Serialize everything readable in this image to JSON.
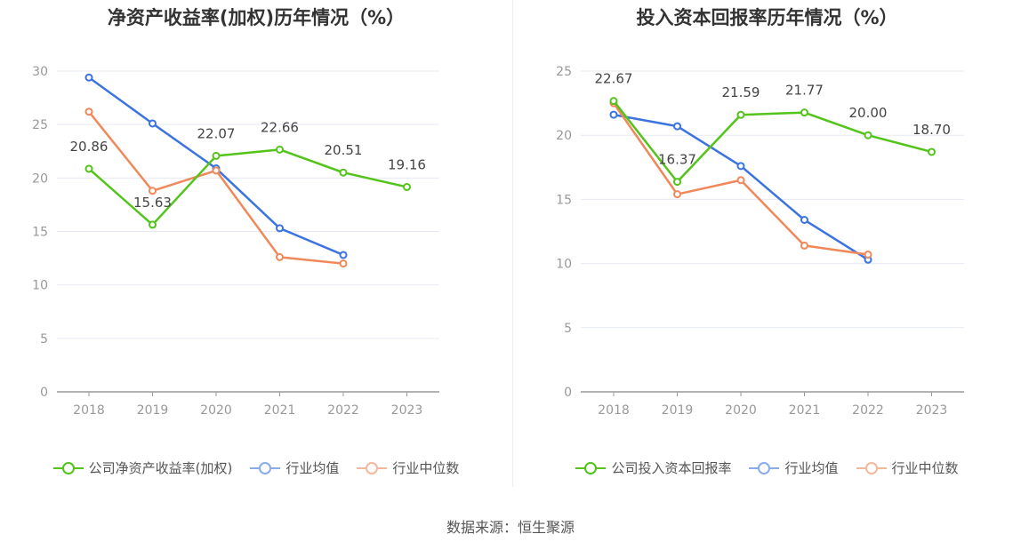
{
  "source": "数据来源：恒生聚源",
  "chart_data": [
    {
      "type": "line",
      "title": "净资产收益率(加权)历年情况（%）",
      "categories": [
        "2018",
        "2019",
        "2020",
        "2021",
        "2022",
        "2023"
      ],
      "ylim": [
        0,
        30
      ],
      "yticks": [
        "0",
        "5",
        "10",
        "15",
        "20",
        "25",
        "30"
      ],
      "grid": true,
      "legend_position": "bottom",
      "series": [
        {
          "name": "公司净资产收益率(加权)",
          "color": "#52c41a",
          "values": [
            20.86,
            15.63,
            22.07,
            22.66,
            20.51,
            19.16
          ],
          "labels": [
            "20.86",
            "15.63",
            "22.07",
            "22.66",
            "20.51",
            "19.16"
          ],
          "label_offsets": [
            -20,
            -20,
            -20,
            -20,
            -20,
            -20
          ]
        },
        {
          "name": "行业均值",
          "color": "#3b73e0",
          "values": [
            29.4,
            25.1,
            20.9,
            15.3,
            12.8,
            null
          ]
        },
        {
          "name": "行业中位数",
          "color": "#f0885a",
          "values": [
            26.2,
            18.8,
            20.7,
            12.6,
            12.0,
            null
          ]
        }
      ]
    },
    {
      "type": "line",
      "title": "投入资本回报率历年情况（%）",
      "categories": [
        "2018",
        "2019",
        "2020",
        "2021",
        "2022",
        "2023"
      ],
      "ylim": [
        0,
        25
      ],
      "yticks": [
        "0",
        "5",
        "10",
        "15",
        "20",
        "25"
      ],
      "grid": true,
      "legend_position": "bottom",
      "series": [
        {
          "name": "公司投入资本回报率",
          "color": "#52c41a",
          "values": [
            22.67,
            16.37,
            21.59,
            21.77,
            20.0,
            18.7
          ],
          "labels": [
            "22.67",
            "16.37",
            "21.59",
            "21.77",
            "20.00",
            "18.70"
          ],
          "label_offsets": [
            -20,
            -20,
            -20,
            -20,
            -20,
            -20
          ]
        },
        {
          "name": "行业均值",
          "color": "#3b73e0",
          "values": [
            21.6,
            20.7,
            17.6,
            13.4,
            10.3,
            null
          ]
        },
        {
          "name": "行业中位数",
          "color": "#f0885a",
          "values": [
            22.5,
            15.4,
            16.5,
            11.4,
            10.7,
            null
          ]
        }
      ]
    }
  ]
}
